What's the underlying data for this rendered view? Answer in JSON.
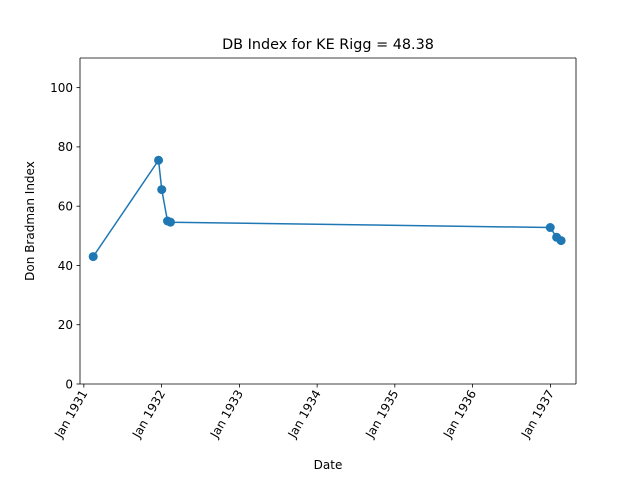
{
  "chart_data": {
    "type": "line",
    "title": "DB Index for KE Rigg = 48.38",
    "xlabel": "Date",
    "ylabel": "Don Bradman Index",
    "ylim": [
      0,
      110
    ],
    "xlim": [
      "1930-12-14",
      "1937-05-01"
    ],
    "grid": false,
    "x_ticks": [
      {
        "date": "1931-01-01",
        "label": "Jan 1931"
      },
      {
        "date": "1932-01-01",
        "label": "Jan 1932"
      },
      {
        "date": "1933-01-01",
        "label": "Jan 1933"
      },
      {
        "date": "1934-01-01",
        "label": "Jan 1934"
      },
      {
        "date": "1935-01-01",
        "label": "Jan 1935"
      },
      {
        "date": "1936-01-01",
        "label": "Jan 1936"
      },
      {
        "date": "1937-01-01",
        "label": "Jan 1937"
      }
    ],
    "y_ticks": [
      0,
      20,
      40,
      60,
      80,
      100
    ],
    "series": [
      {
        "color": "#1f77b4",
        "marker": "circle",
        "points": [
          {
            "x": "1931-02-14",
            "y": 43.0
          },
          {
            "x": "1931-12-18",
            "y": 75.5
          },
          {
            "x": "1932-01-02",
            "y": 65.6
          },
          {
            "x": "1932-01-29",
            "y": 55.0
          },
          {
            "x": "1932-02-12",
            "y": 54.6
          },
          {
            "x": "1936-12-31",
            "y": 52.8
          },
          {
            "x": "1937-01-30",
            "y": 49.5
          },
          {
            "x": "1937-02-20",
            "y": 48.38
          }
        ]
      }
    ]
  }
}
